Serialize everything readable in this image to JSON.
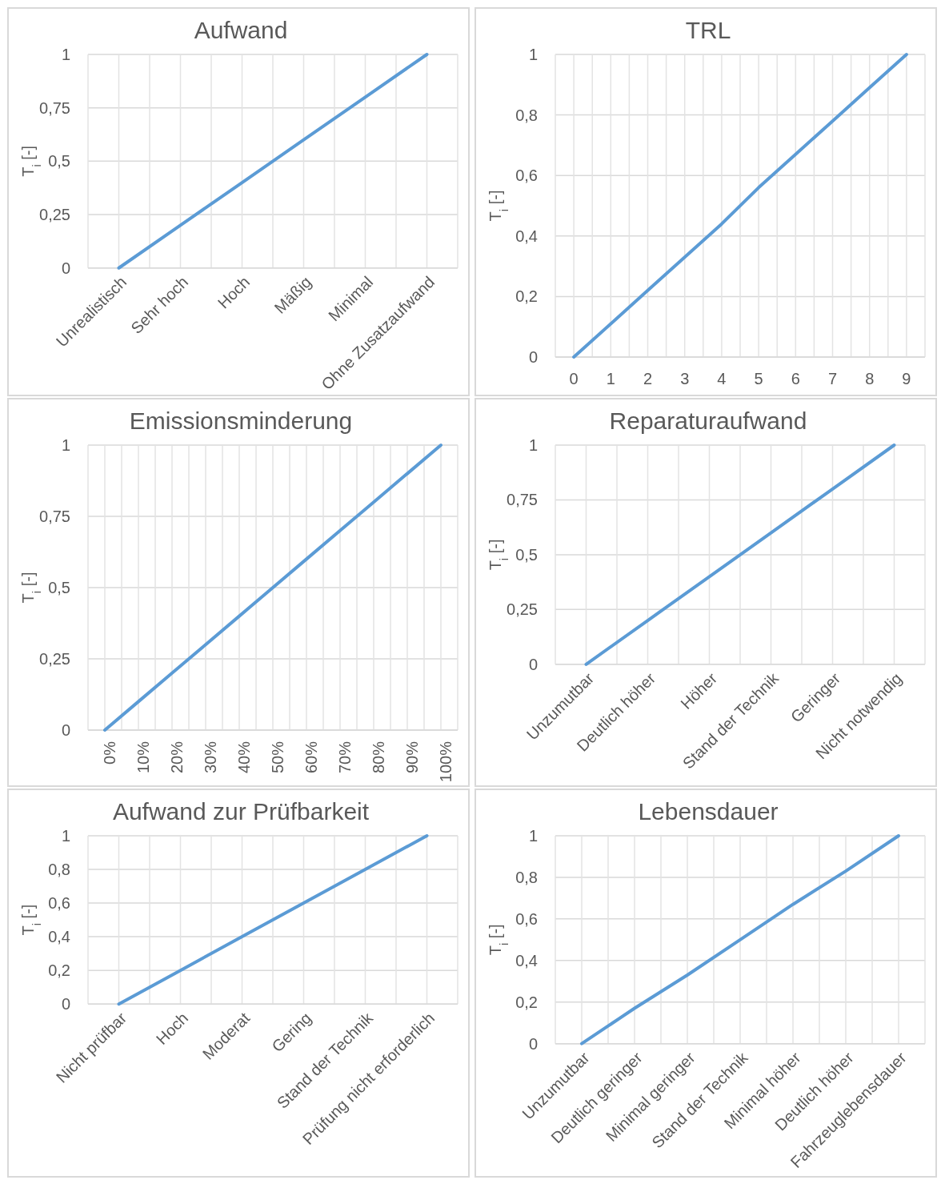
{
  "chart_data": [
    {
      "type": "line",
      "title": "Aufwand",
      "ylabel": "T$_{i}$ [-]",
      "categories": [
        "Unrealistisch",
        "Sehr hoch",
        "Hoch",
        "Mäßig",
        "Minimal",
        "Ohne Zusatzaufwand"
      ],
      "values": [
        0,
        0.2,
        0.4,
        0.6,
        0.8,
        1
      ],
      "color": "#5b9bd5",
      "ylim": [
        0,
        1
      ],
      "yticks": [
        {
          "value": 0,
          "label": "0"
        },
        {
          "value": 0.25,
          "label": "0,25"
        },
        {
          "value": 0.5,
          "label": "0,5"
        },
        {
          "value": 0.75,
          "label": "0,75"
        },
        {
          "value": 1,
          "label": "1"
        }
      ],
      "grid": true
    },
    {
      "type": "line",
      "title": "TRL",
      "ylabel": "T$_{i}$ [-]",
      "categories": [
        "0",
        "1",
        "2",
        "3",
        "4",
        "5",
        "6",
        "7",
        "8",
        "9"
      ],
      "values": [
        0,
        0.11,
        0.22,
        0.33,
        0.44,
        0.56,
        0.67,
        0.78,
        0.89,
        1
      ],
      "color": "#5b9bd5",
      "ylim": [
        0,
        1
      ],
      "yticks": [
        {
          "value": 0,
          "label": "0"
        },
        {
          "value": 0.2,
          "label": "0,2"
        },
        {
          "value": 0.4,
          "label": "0,4"
        },
        {
          "value": 0.6,
          "label": "0,6"
        },
        {
          "value": 0.8,
          "label": "0,8"
        },
        {
          "value": 1,
          "label": "1"
        }
      ],
      "grid": true
    },
    {
      "type": "line",
      "title": "Emissionsminderung",
      "ylabel": "T$_{i}$ [-]",
      "categories": [
        "0%",
        "10%",
        "20%",
        "30%",
        "40%",
        "50%",
        "60%",
        "70%",
        "80%",
        "90%",
        "100%"
      ],
      "values": [
        0,
        0.1,
        0.2,
        0.3,
        0.4,
        0.5,
        0.6,
        0.7,
        0.8,
        0.9,
        1
      ],
      "color": "#5b9bd5",
      "ylim": [
        0,
        1
      ],
      "yticks": [
        {
          "value": 0,
          "label": "0"
        },
        {
          "value": 0.25,
          "label": "0,25"
        },
        {
          "value": 0.5,
          "label": "0,5"
        },
        {
          "value": 0.75,
          "label": "0,75"
        },
        {
          "value": 1,
          "label": "1"
        }
      ],
      "grid": true
    },
    {
      "type": "line",
      "title": "Reparaturaufwand",
      "ylabel": "T$_{i}$ [-]",
      "categories": [
        "Unzumutbar",
        "Deutlich höher",
        "Höher",
        "Stand der Technik",
        "Geringer",
        "Nicht notwendig"
      ],
      "values": [
        0,
        0.2,
        0.4,
        0.6,
        0.8,
        1
      ],
      "color": "#5b9bd5",
      "ylim": [
        0,
        1
      ],
      "yticks": [
        {
          "value": 0,
          "label": "0"
        },
        {
          "value": 0.25,
          "label": "0,25"
        },
        {
          "value": 0.5,
          "label": "0,5"
        },
        {
          "value": 0.75,
          "label": "0,75"
        },
        {
          "value": 1,
          "label": "1"
        }
      ],
      "grid": true
    },
    {
      "type": "line",
      "title": "Aufwand zur Prüfbarkeit",
      "ylabel": "T$_{i}$ [-]",
      "categories": [
        "Nicht prüfbar",
        "Hoch",
        "Moderat",
        "Gering",
        "Stand der Technik",
        "Prüfung nicht erforderlich"
      ],
      "values": [
        0,
        0.2,
        0.4,
        0.6,
        0.8,
        1
      ],
      "color": "#5b9bd5",
      "ylim": [
        0,
        1
      ],
      "yticks": [
        {
          "value": 0,
          "label": "0"
        },
        {
          "value": 0.2,
          "label": "0,2"
        },
        {
          "value": 0.4,
          "label": "0,4"
        },
        {
          "value": 0.6,
          "label": "0,6"
        },
        {
          "value": 0.8,
          "label": "0,8"
        },
        {
          "value": 1,
          "label": "1"
        }
      ],
      "grid": true
    },
    {
      "type": "line",
      "title": "Lebensdauer",
      "ylabel": "T$_{i}$ [-]",
      "categories": [
        "Unzumutbar",
        "Deutlich geringer",
        "Minimal geringer",
        "Stand der Technik",
        "Minimal höher",
        "Deutlich höher",
        "Fahrzeuglebensdauer"
      ],
      "values": [
        0,
        0.17,
        0.33,
        0.5,
        0.67,
        0.83,
        1
      ],
      "color": "#5b9bd5",
      "ylim": [
        0,
        1
      ],
      "yticks": [
        {
          "value": 0,
          "label": "0"
        },
        {
          "value": 0.2,
          "label": "0,2"
        },
        {
          "value": 0.4,
          "label": "0,4"
        },
        {
          "value": 0.6,
          "label": "0,6"
        },
        {
          "value": 0.8,
          "label": "0,8"
        },
        {
          "value": 1,
          "label": "1"
        }
      ],
      "grid": true
    }
  ]
}
